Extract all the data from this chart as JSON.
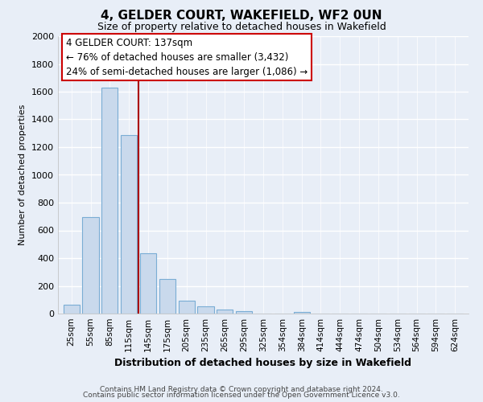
{
  "title": "4, GELDER COURT, WAKEFIELD, WF2 0UN",
  "subtitle": "Size of property relative to detached houses in Wakefield",
  "xlabel": "Distribution of detached houses by size in Wakefield",
  "ylabel": "Number of detached properties",
  "categories": [
    "25sqm",
    "55sqm",
    "85sqm",
    "115sqm",
    "145sqm",
    "175sqm",
    "205sqm",
    "235sqm",
    "265sqm",
    "295sqm",
    "325sqm",
    "354sqm",
    "384sqm",
    "414sqm",
    "444sqm",
    "474sqm",
    "504sqm",
    "534sqm",
    "564sqm",
    "594sqm",
    "624sqm"
  ],
  "values": [
    65,
    695,
    1630,
    1285,
    435,
    250,
    90,
    52,
    28,
    18,
    0,
    0,
    12,
    0,
    0,
    0,
    0,
    0,
    0,
    0,
    0
  ],
  "bar_color": "#c9d9ec",
  "bar_edge_color": "#7aadd4",
  "highlight_line_color": "#aa0000",
  "ylim": [
    0,
    2000
  ],
  "yticks": [
    0,
    200,
    400,
    600,
    800,
    1000,
    1200,
    1400,
    1600,
    1800,
    2000
  ],
  "annotation_title": "4 GELDER COURT: 137sqm",
  "annotation_line1": "← 76% of detached houses are smaller (3,432)",
  "annotation_line2": "24% of semi-detached houses are larger (1,086) →",
  "annotation_box_color": "#ffffff",
  "annotation_box_edge": "#cc0000",
  "footer_line1": "Contains HM Land Registry data © Crown copyright and database right 2024.",
  "footer_line2": "Contains public sector information licensed under the Open Government Licence v3.0.",
  "bg_color": "#e8eef7",
  "grid_color": "#ffffff",
  "highlight_bar_index": 4
}
